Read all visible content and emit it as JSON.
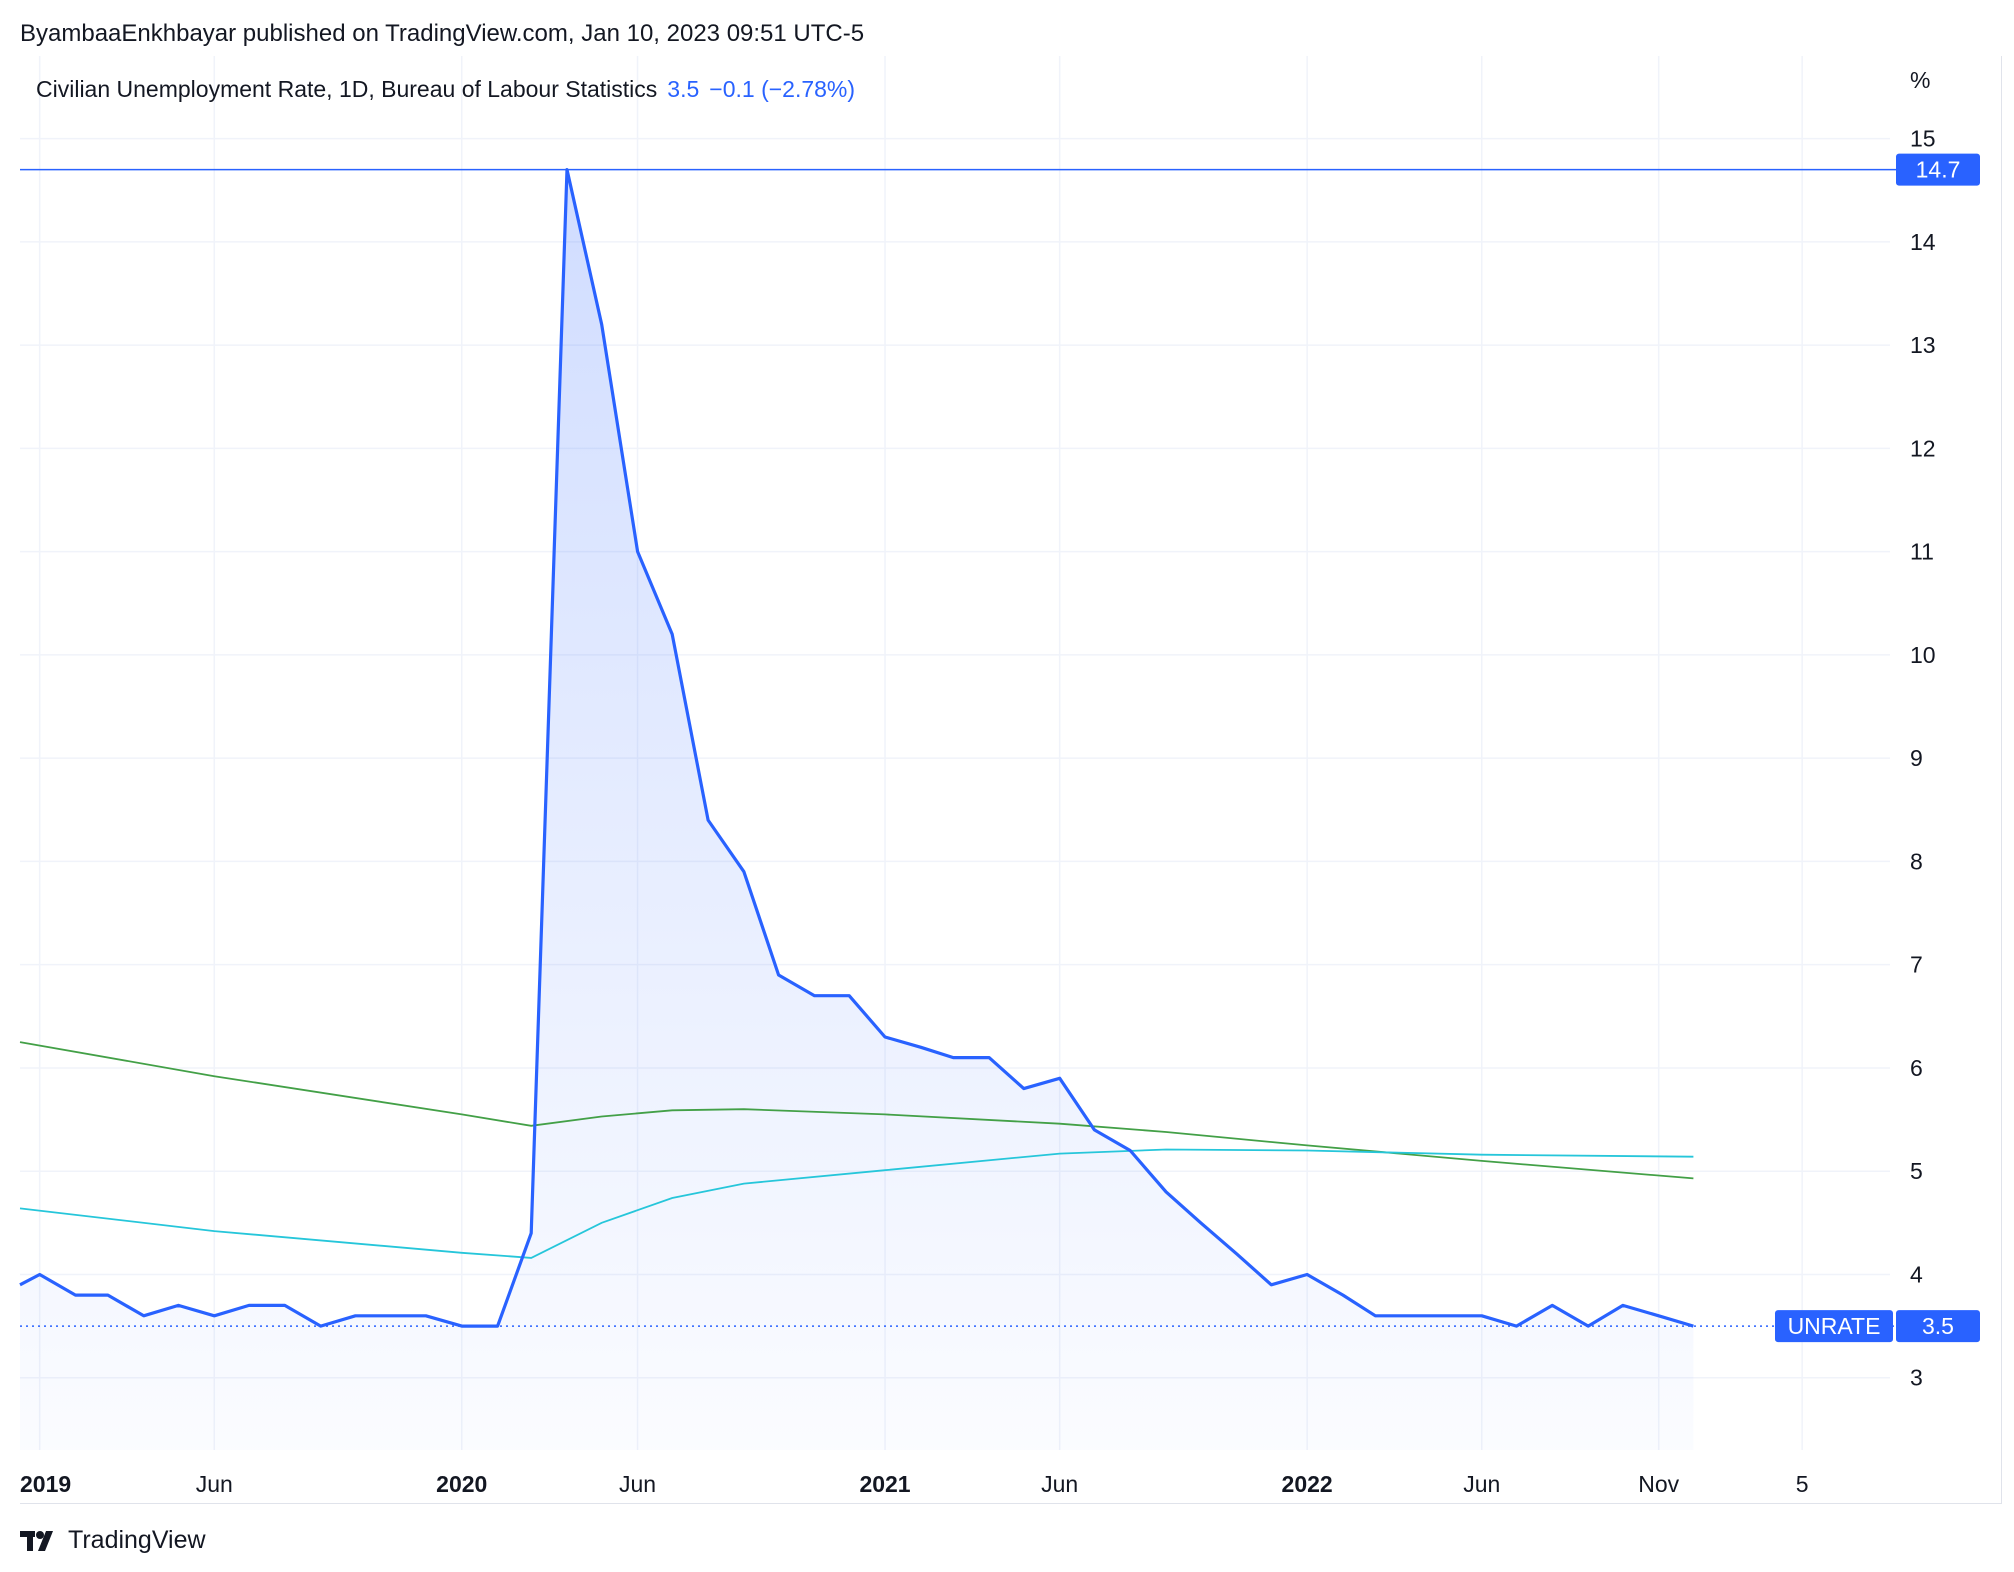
{
  "header": {
    "publisher_line": "ByambaaEnkhbayar published on TradingView.com, Jan 10, 2023 09:51 UTC-5"
  },
  "legend": {
    "title": "Civilian Unemployment Rate, 1D, Bureau of Labour Statistics",
    "value": "3.5",
    "change": "−0.1 (−2.78%)"
  },
  "footer": {
    "brand": "TradingView"
  },
  "colors": {
    "main_line": "#2962ff",
    "ma_green": "#43a047",
    "ma_cyan": "#26c6da",
    "grid": "#f0f3fa",
    "axis_text": "#131722",
    "label_bg": "#2962ff"
  },
  "chart_data": {
    "type": "line",
    "title": "Civilian Unemployment Rate, 1D, Bureau of Labour Statistics",
    "y_unit": "%",
    "ylim": [
      2.3,
      15.8
    ],
    "yticks": [
      3,
      4,
      5,
      6,
      7,
      8,
      9,
      10,
      11,
      12,
      13,
      14,
      15
    ],
    "xlim": [
      "2018-12-15",
      "2023-05-20"
    ],
    "xticks": [
      {
        "label": "2019",
        "date": "2019-01-01",
        "bold": true
      },
      {
        "label": "Jun",
        "date": "2019-06-01",
        "bold": false
      },
      {
        "label": "2020",
        "date": "2020-01-01",
        "bold": true
      },
      {
        "label": "Jun",
        "date": "2020-06-01",
        "bold": false
      },
      {
        "label": "2021",
        "date": "2021-01-01",
        "bold": true
      },
      {
        "label": "Jun",
        "date": "2021-06-01",
        "bold": false
      },
      {
        "label": "2022",
        "date": "2022-01-01",
        "bold": true
      },
      {
        "label": "Jun",
        "date": "2022-06-01",
        "bold": false
      },
      {
        "label": "Nov",
        "date": "2022-11-01",
        "bold": false
      },
      {
        "label": "5",
        "date": "2023-03-05",
        "bold": false
      }
    ],
    "grid": true,
    "series": [
      {
        "name": "UNRATE",
        "style": "area",
        "points": [
          [
            "2018-12-15",
            3.9
          ],
          [
            "2019-01-01",
            4.0
          ],
          [
            "2019-02-01",
            3.8
          ],
          [
            "2019-03-01",
            3.8
          ],
          [
            "2019-04-01",
            3.6
          ],
          [
            "2019-05-01",
            3.7
          ],
          [
            "2019-06-01",
            3.6
          ],
          [
            "2019-07-01",
            3.7
          ],
          [
            "2019-08-01",
            3.7
          ],
          [
            "2019-09-01",
            3.5
          ],
          [
            "2019-10-01",
            3.6
          ],
          [
            "2019-11-01",
            3.6
          ],
          [
            "2019-12-01",
            3.6
          ],
          [
            "2020-01-01",
            3.5
          ],
          [
            "2020-02-01",
            3.5
          ],
          [
            "2020-03-01",
            4.4
          ],
          [
            "2020-04-01",
            14.7
          ],
          [
            "2020-05-01",
            13.2
          ],
          [
            "2020-06-01",
            11.0
          ],
          [
            "2020-07-01",
            10.2
          ],
          [
            "2020-08-01",
            8.4
          ],
          [
            "2020-09-01",
            7.9
          ],
          [
            "2020-10-01",
            6.9
          ],
          [
            "2020-11-01",
            6.7
          ],
          [
            "2020-12-01",
            6.7
          ],
          [
            "2021-01-01",
            6.3
          ],
          [
            "2021-02-01",
            6.2
          ],
          [
            "2021-03-01",
            6.1
          ],
          [
            "2021-04-01",
            6.1
          ],
          [
            "2021-05-01",
            5.8
          ],
          [
            "2021-06-01",
            5.9
          ],
          [
            "2021-07-01",
            5.4
          ],
          [
            "2021-08-01",
            5.2
          ],
          [
            "2021-09-01",
            4.8
          ],
          [
            "2021-10-01",
            4.5
          ],
          [
            "2021-11-01",
            4.2
          ],
          [
            "2021-12-01",
            3.9
          ],
          [
            "2022-01-01",
            4.0
          ],
          [
            "2022-02-01",
            3.8
          ],
          [
            "2022-03-01",
            3.6
          ],
          [
            "2022-04-01",
            3.6
          ],
          [
            "2022-05-01",
            3.6
          ],
          [
            "2022-06-01",
            3.6
          ],
          [
            "2022-07-01",
            3.5
          ],
          [
            "2022-08-01",
            3.7
          ],
          [
            "2022-09-01",
            3.5
          ],
          [
            "2022-10-01",
            3.7
          ],
          [
            "2022-11-01",
            3.6
          ],
          [
            "2022-12-01",
            3.5
          ]
        ]
      },
      {
        "style": "line",
        "color": "#43a047",
        "points": [
          [
            "2018-12-15",
            6.25
          ],
          [
            "2019-06-01",
            5.92
          ],
          [
            "2020-01-01",
            5.55
          ],
          [
            "2020-03-01",
            5.44
          ],
          [
            "2020-05-01",
            5.53
          ],
          [
            "2020-07-01",
            5.59
          ],
          [
            "2020-09-01",
            5.6
          ],
          [
            "2021-01-01",
            5.55
          ],
          [
            "2021-06-01",
            5.46
          ],
          [
            "2021-09-01",
            5.38
          ],
          [
            "2022-01-01",
            5.25
          ],
          [
            "2022-06-01",
            5.1
          ],
          [
            "2022-12-01",
            4.93
          ]
        ]
      },
      {
        "style": "line",
        "color": "#26c6da",
        "points": [
          [
            "2018-12-15",
            4.64
          ],
          [
            "2019-06-01",
            4.42
          ],
          [
            "2020-01-01",
            4.21
          ],
          [
            "2020-03-01",
            4.16
          ],
          [
            "2020-05-01",
            4.5
          ],
          [
            "2020-07-01",
            4.74
          ],
          [
            "2020-09-01",
            4.88
          ],
          [
            "2021-01-01",
            5.01
          ],
          [
            "2021-06-01",
            5.17
          ],
          [
            "2021-09-01",
            5.21
          ],
          [
            "2022-01-01",
            5.2
          ],
          [
            "2022-06-01",
            5.16
          ],
          [
            "2022-12-01",
            5.14
          ]
        ]
      }
    ],
    "reference_lines": [
      {
        "value": 14.7,
        "label": "14.7",
        "style": "solid"
      },
      {
        "value": 3.5,
        "label": "3.5",
        "tag": "UNRATE",
        "style": "dotted"
      }
    ]
  }
}
